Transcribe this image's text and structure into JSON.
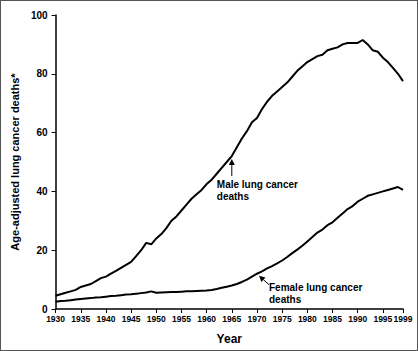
{
  "chart_data": {
    "type": "line",
    "x_label": "Year",
    "y_label": "Age-adjusted lung cancer deaths*",
    "x": [
      1930,
      1931,
      1932,
      1933,
      1934,
      1935,
      1936,
      1937,
      1938,
      1939,
      1940,
      1941,
      1942,
      1943,
      1944,
      1945,
      1946,
      1947,
      1948,
      1949,
      1950,
      1951,
      1952,
      1953,
      1954,
      1955,
      1956,
      1957,
      1958,
      1959,
      1960,
      1961,
      1962,
      1963,
      1964,
      1965,
      1966,
      1967,
      1968,
      1969,
      1970,
      1971,
      1972,
      1973,
      1974,
      1975,
      1976,
      1977,
      1978,
      1979,
      1980,
      1981,
      1982,
      1983,
      1984,
      1985,
      1986,
      1987,
      1988,
      1989,
      1990,
      1991,
      1992,
      1993,
      1994,
      1995,
      1996,
      1997,
      1998,
      1999
    ],
    "series": [
      {
        "name": "Male lung cancer deaths",
        "color": "#000000",
        "values": [
          4.5,
          5,
          5.5,
          6,
          6.5,
          7.5,
          8,
          8.5,
          9.5,
          10.5,
          11,
          12,
          13,
          14,
          15,
          16,
          18,
          20,
          22.5,
          22,
          24,
          25.5,
          27.5,
          30,
          31.5,
          33.5,
          35.5,
          37.5,
          39,
          40.5,
          42.5,
          44,
          46,
          48,
          50,
          52,
          55,
          58,
          60.5,
          63.5,
          65,
          68,
          70.5,
          72.5,
          74,
          75.5,
          77,
          79,
          81,
          82.5,
          84,
          85,
          86,
          86.5,
          88,
          88.5,
          89,
          90,
          90.5,
          90.5,
          90.5,
          91.5,
          90,
          88,
          87.5,
          85.5,
          84,
          82,
          80,
          77.5
        ]
      },
      {
        "name": "Female lung cancer deaths",
        "color": "#000000",
        "values": [
          2.5,
          2.7,
          2.8,
          3,
          3.2,
          3.4,
          3.6,
          3.7,
          3.9,
          4,
          4.2,
          4.4,
          4.5,
          4.7,
          4.9,
          5,
          5.2,
          5.4,
          5.6,
          6,
          5.5,
          5.6,
          5.7,
          5.8,
          5.8,
          5.9,
          6,
          6,
          6.1,
          6.2,
          6.3,
          6.5,
          6.8,
          7.2,
          7.6,
          8,
          8.5,
          9.2,
          10,
          11,
          12,
          12.8,
          13.8,
          14.6,
          15.5,
          16.5,
          17.7,
          19,
          20.2,
          21.5,
          23,
          24.5,
          26,
          27,
          28.5,
          29.5,
          31,
          32.5,
          34,
          35,
          36.5,
          37.5,
          38.5,
          39,
          39.5,
          40,
          40.5,
          41,
          41.5,
          40.5
        ]
      }
    ],
    "xlim": [
      1930,
      1999
    ],
    "xticks": [
      1930,
      1935,
      1940,
      1945,
      1950,
      1955,
      1960,
      1965,
      1970,
      1975,
      1980,
      1985,
      1990,
      1995,
      1999
    ],
    "ylim": [
      0,
      100
    ],
    "yticks": [
      0,
      20,
      40,
      60,
      80,
      100
    ],
    "grid": false
  }
}
